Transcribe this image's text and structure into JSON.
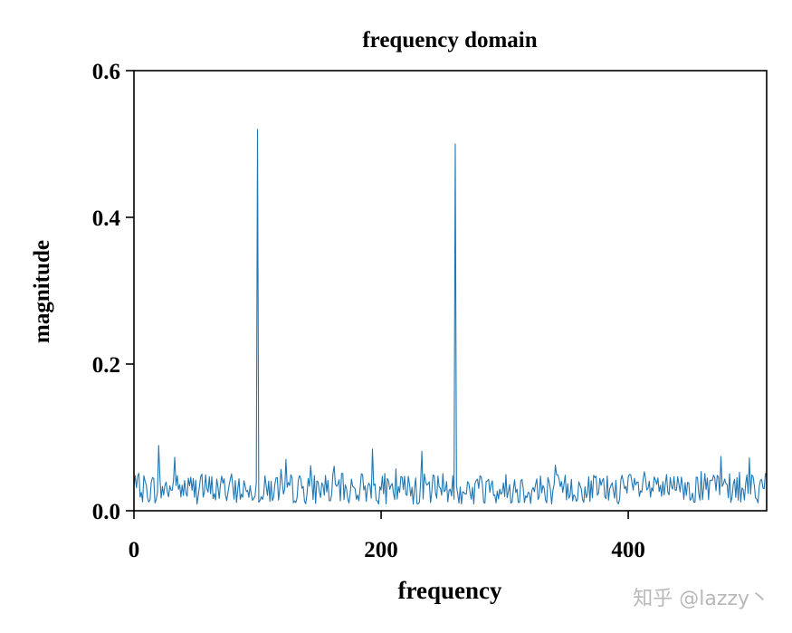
{
  "chart_data": {
    "type": "line",
    "title": "frequency domain",
    "xlabel": "frequency",
    "ylabel": "magnitude",
    "xlim": [
      0,
      512
    ],
    "ylim": [
      0,
      0.6
    ],
    "xticks": [
      0,
      200,
      400
    ],
    "xtick_labels": [
      "0",
      "200",
      "400"
    ],
    "yticks": [
      0.0,
      0.2,
      0.4,
      0.6
    ],
    "ytick_labels": [
      "0.0",
      "0.2",
      "0.4",
      "0.6"
    ],
    "grid": false,
    "line_color": "#1f77b4",
    "noise_floor": {
      "x_range": [
        0,
        512
      ],
      "mean": 0.03,
      "max": 0.09
    },
    "peaks": [
      {
        "x": 100,
        "y": 0.52
      },
      {
        "x": 260,
        "y": 0.5
      }
    ],
    "local_maxima": [
      {
        "x": 20,
        "y": 0.089
      },
      {
        "x": 33,
        "y": 0.073
      },
      {
        "x": 193,
        "y": 0.084
      },
      {
        "x": 233,
        "y": 0.081
      },
      {
        "x": 475,
        "y": 0.074
      },
      {
        "x": 498,
        "y": 0.072
      }
    ]
  },
  "watermark": "知乎 @lazzy丶"
}
